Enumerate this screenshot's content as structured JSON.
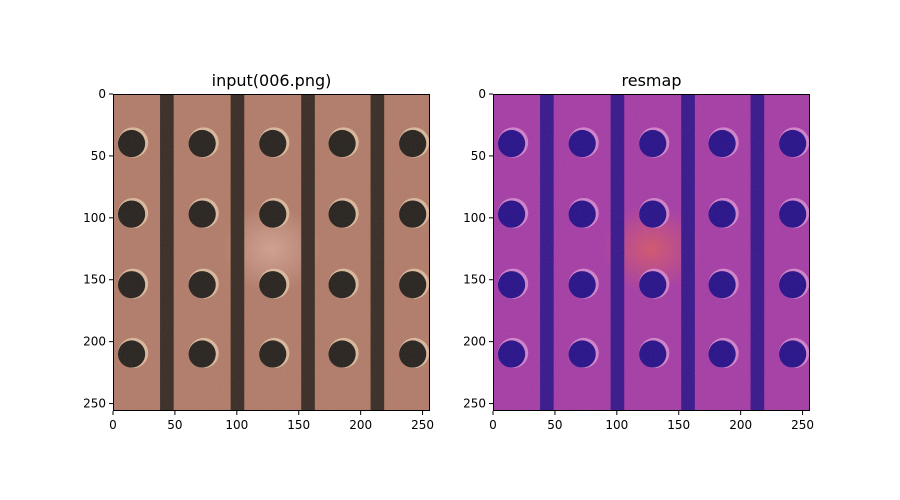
{
  "chart_data": [
    {
      "type": "heatmap",
      "title": "input(006.png)",
      "xlabel": "",
      "ylabel": "",
      "xlim": [
        0,
        256
      ],
      "ylim": [
        256,
        0
      ],
      "xticks": [
        0,
        50,
        100,
        150,
        200,
        250
      ],
      "yticks": [
        0,
        50,
        100,
        150,
        200,
        250
      ],
      "grid": false,
      "colors": {
        "background": "#b27d6b",
        "groove": "#3b2f28",
        "hole": "#2a2521",
        "hole_rim": "#e0c2a6"
      },
      "grooves_x": [
        [
          38,
          49
        ],
        [
          95,
          106
        ],
        [
          152,
          163
        ],
        [
          208,
          219
        ]
      ],
      "hole_centers_x": [
        15,
        72,
        129,
        185,
        242
      ],
      "hole_centers_y": [
        40,
        97,
        154,
        210
      ],
      "hole_radius": 11
    },
    {
      "type": "heatmap",
      "title": "resmap",
      "xlabel": "",
      "ylabel": "",
      "xlim": [
        0,
        256
      ],
      "ylim": [
        256,
        0
      ],
      "xticks": [
        0,
        50,
        100,
        150,
        200,
        250
      ],
      "yticks": [
        0,
        50,
        100,
        150,
        200,
        250
      ],
      "grid": false,
      "colors": {
        "background": "#a63fa6",
        "groove": "#3a1a8c",
        "hole": "#2a148a",
        "hole_rim": "#d98fd0",
        "highlight": "#d6555e"
      },
      "grooves_x": [
        [
          38,
          49
        ],
        [
          95,
          106
        ],
        [
          152,
          163
        ],
        [
          208,
          219
        ]
      ],
      "hole_centers_x": [
        15,
        72,
        129,
        185,
        242
      ],
      "hole_centers_y": [
        40,
        97,
        154,
        210
      ],
      "hole_radius": 11
    }
  ]
}
